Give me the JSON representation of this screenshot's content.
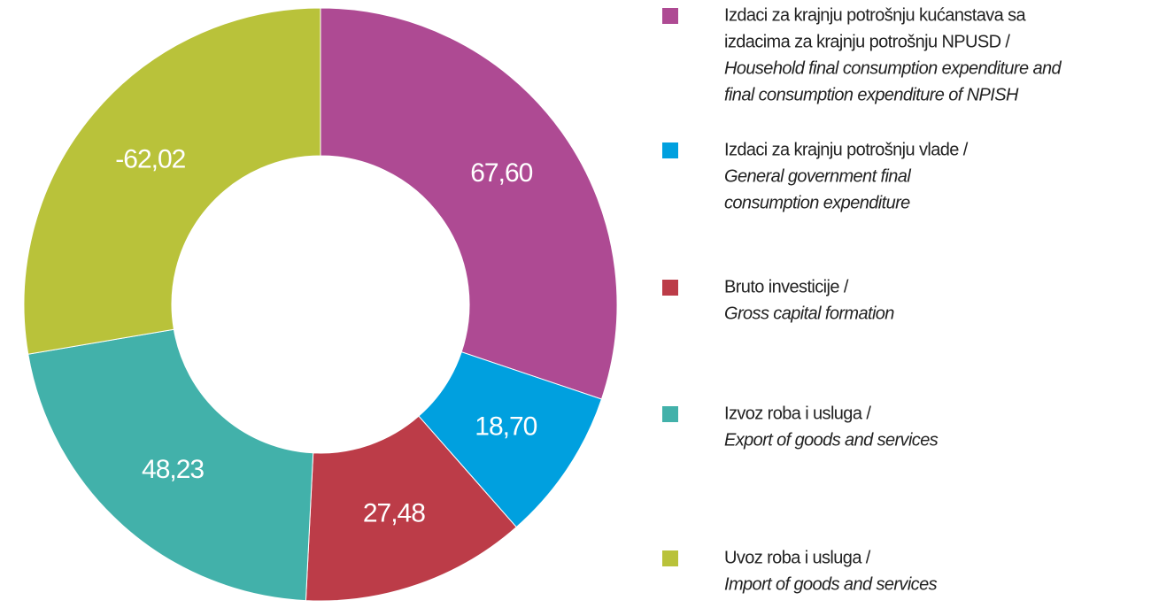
{
  "chart_data": {
    "type": "donut",
    "categories": [
      [
        "Izdaci za krajnju potrošnju kućanstava sa",
        "izdacima za krajnju potrošnju NPUSD /"
      ],
      [
        "Izdaci za krajnju potrošnju vlade /"
      ],
      [
        "Bruto investicije /"
      ],
      [
        "Izvoz roba i usluga /"
      ],
      [
        "Uvoz roba i usluga /"
      ]
    ],
    "categories_en": [
      [
        "Household final consumption expenditure and",
        "final consumption expenditure of NPISH"
      ],
      [
        "General government final",
        "consumption expenditure"
      ],
      [
        "Gross capital formation"
      ],
      [
        "Export of goods and services"
      ],
      [
        "Import of goods and services"
      ]
    ],
    "values": [
      67.6,
      18.7,
      27.48,
      48.23,
      -62.02
    ],
    "value_labels": [
      "67,60",
      "18,70",
      "27,48",
      "48,23",
      "-62,02"
    ],
    "colors": [
      "#ae4a93",
      "#00a0df",
      "#bc3c48",
      "#42b1aa",
      "#b9c23a"
    ]
  }
}
